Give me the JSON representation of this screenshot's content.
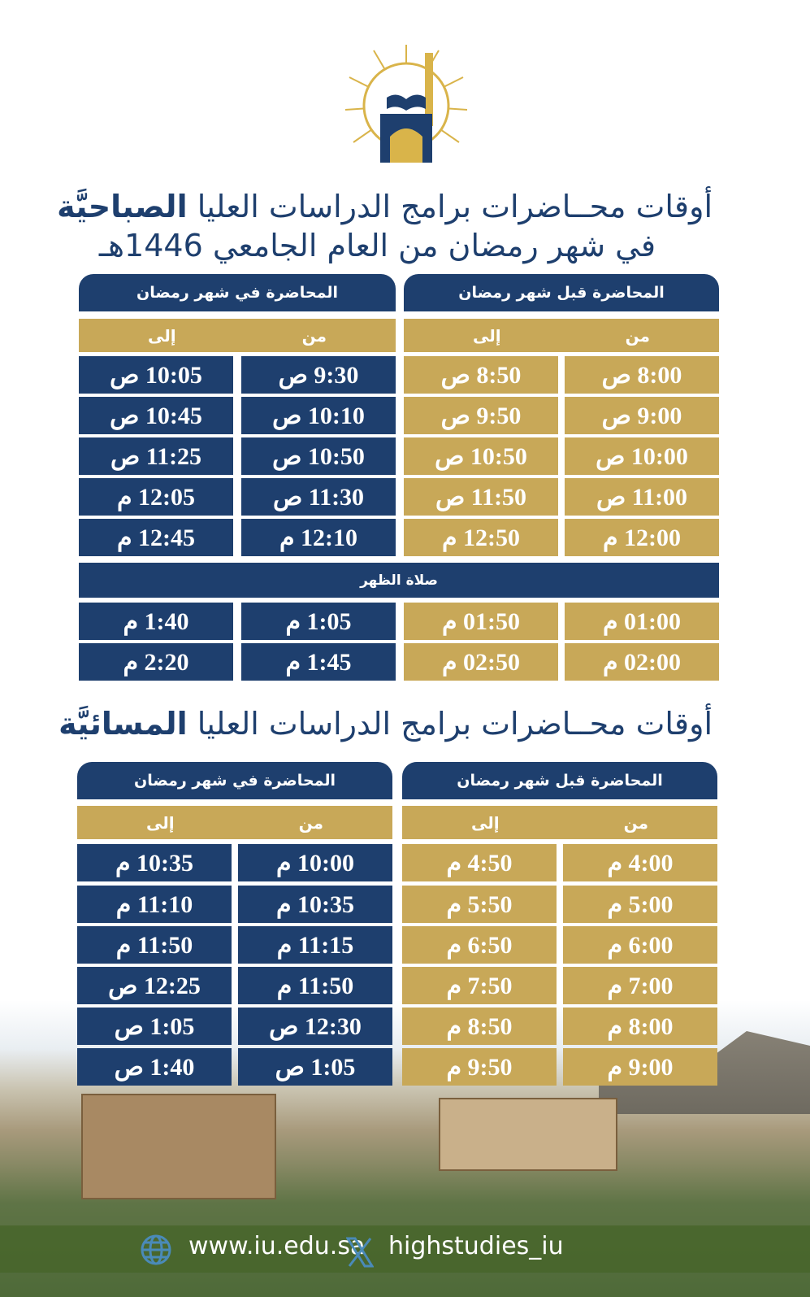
{
  "logo": {
    "name": "islamic-university-logo",
    "colors": {
      "gold": "#d9b44a",
      "navy": "#1e3f6e"
    }
  },
  "morning": {
    "title_regular": "أوقات محــاضرات برامج الدراسات العليا",
    "title_bold": "الصباحيَّة",
    "subtitle": "في شهر رمضان من العام الجامعي 1446هـ",
    "before": {
      "header": "المحاضرة  قبل شهر رمضان",
      "from_label": "من",
      "to_label": "إلى",
      "rows": [
        [
          "8:00 ص",
          "8:50 ص"
        ],
        [
          "9:00 ص",
          "9:50 ص"
        ],
        [
          "10:00 ص",
          "10:50 ص"
        ],
        [
          "11:00 ص",
          "11:50 ص"
        ],
        [
          "12:00 م",
          "12:50 م"
        ],
        [
          "01:00 م",
          "01:50 م"
        ],
        [
          "02:00 م",
          "02:50 م"
        ]
      ]
    },
    "during": {
      "header": "المحاضرة  في شهر رمضان",
      "from_label": "من",
      "to_label": "إلى",
      "rows": [
        [
          "9:30 ص",
          "10:05 ص"
        ],
        [
          "10:10 ص",
          "10:45 ص"
        ],
        [
          "10:50 ص",
          "11:25 ص"
        ],
        [
          "11:30 ص",
          "12:05 م"
        ],
        [
          "12:10 م",
          "12:45 م"
        ],
        [
          "1:05 م",
          "1:40 م"
        ],
        [
          "1:45 م",
          "2:20 م"
        ]
      ]
    },
    "prayer": "صلاة الظهر"
  },
  "evening": {
    "title_regular": "أوقات محــاضرات برامج الدراسات العليا",
    "title_bold": "المسائيَّة",
    "before": {
      "header": "المحاضرة  قبل شهر رمضان",
      "from_label": "من",
      "to_label": "إلى",
      "rows": [
        [
          "4:00 م",
          "4:50 م"
        ],
        [
          "5:00 م",
          "5:50 م"
        ],
        [
          "6:00 م",
          "6:50 م"
        ],
        [
          "7:00 م",
          "7:50 م"
        ],
        [
          "8:00 م",
          "8:50 م"
        ],
        [
          "9:00 م",
          "9:50 م"
        ]
      ]
    },
    "during": {
      "header": "المحاضرة  في شهر رمضان",
      "from_label": "من",
      "to_label": "إلى",
      "rows": [
        [
          "10:00 م",
          "10:35 م"
        ],
        [
          "10:35 م",
          "11:10 م"
        ],
        [
          "11:15 م",
          "11:50 م"
        ],
        [
          "11:50 م",
          "12:25 ص"
        ],
        [
          "12:30 ص",
          "1:05 ص"
        ],
        [
          "1:05 ص",
          "1:40 ص"
        ]
      ]
    }
  },
  "footer": {
    "website": "www.iu.edu.sa",
    "website_icon": "globe-icon",
    "social_handle": "highstudies_iu",
    "social_icon": "x-icon",
    "icon_color": "#4a8ab8"
  },
  "colors": {
    "navy": "#1e3f6e",
    "gold": "#c8a858"
  }
}
